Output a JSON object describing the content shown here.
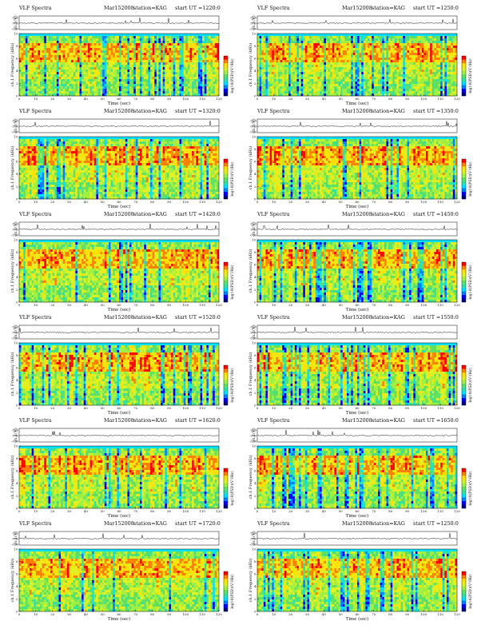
{
  "figure": {
    "type": "VLF Spectra grid",
    "columns": 2,
    "rows": 6
  },
  "colors": {
    "spectrogram_scale": [
      "#000080",
      "#0000ff",
      "#0080ff",
      "#00e0ff",
      "#30e0a0",
      "#60e060",
      "#a0f040",
      "#e0f020",
      "#ffe000",
      "#ff8000",
      "#ff0000"
    ]
  },
  "chart_data": [
    {
      "type": "heatmap",
      "title": "VLF Spectra",
      "date": "Mar152008",
      "station": "station=KAG",
      "start": "start UT =1220:0",
      "xlabel": "Time (sec)",
      "ylabel": "ch.1 Frequency (kHz)",
      "toplabel": "ch.1(V)",
      "colorbar_label": "log10(PSD)(V²/Hz)",
      "xlim": [
        0,
        120
      ],
      "ylim": [
        0,
        10
      ],
      "xticks": [
        "0",
        "10",
        "20",
        "30",
        "40",
        "50",
        "60",
        "70",
        "80",
        "90",
        "100",
        "110",
        "120"
      ],
      "yticks": [
        "0",
        "2",
        "4",
        "6",
        "8",
        "10"
      ],
      "top_ticks": [
        "0.20",
        "0.00",
        "-0.50"
      ],
      "seed": 11
    },
    {
      "type": "heatmap",
      "title": "VLF Spectra",
      "date": "Mar152008",
      "station": "station=KAG",
      "start": "start UT =1250:0",
      "xlabel": "Time (sec)",
      "ylabel": "ch.1 Frequency (kHz)",
      "toplabel": "ch.1(V)",
      "colorbar_label": "log10(PSD)(V²/Hz)",
      "xlim": [
        0,
        120
      ],
      "ylim": [
        0,
        10
      ],
      "xticks": [
        "0",
        "10",
        "20",
        "30",
        "40",
        "50",
        "60",
        "70",
        "80",
        "90",
        "100",
        "110",
        "120"
      ],
      "yticks": [
        "0",
        "2",
        "4",
        "6",
        "8",
        "10"
      ],
      "top_ticks": [
        "0.20",
        "0.00",
        "-0.50"
      ],
      "seed": 23
    },
    {
      "type": "heatmap",
      "title": "VLF Spectra",
      "date": "Mar152008",
      "station": "station=KAG",
      "start": "start UT =1320:0",
      "xlabel": "Time (sec)",
      "ylabel": "ch.1 Frequency (kHz)",
      "toplabel": "ch.1(V)",
      "colorbar_label": "log10(PSD)(V²/Hz)",
      "xlim": [
        0,
        120
      ],
      "ylim": [
        0,
        10
      ],
      "xticks": [
        "0",
        "10",
        "20",
        "30",
        "40",
        "50",
        "60",
        "70",
        "80",
        "90",
        "100",
        "110",
        "120"
      ],
      "yticks": [
        "0",
        "2",
        "4",
        "6",
        "8",
        "10"
      ],
      "top_ticks": [
        "0.20",
        "0.00",
        "-0.50"
      ],
      "seed": 37
    },
    {
      "type": "heatmap",
      "title": "VLF Spectra",
      "date": "Mar152008",
      "station": "station=KAG",
      "start": "start UT =1350:0",
      "xlabel": "Time (sec)",
      "ylabel": "ch.1 Frequency (kHz)",
      "toplabel": "ch.1(V)",
      "colorbar_label": "log10(PSD)(V²/Hz)",
      "xlim": [
        0,
        120
      ],
      "ylim": [
        0,
        10
      ],
      "xticks": [
        "0",
        "10",
        "20",
        "30",
        "40",
        "50",
        "60",
        "70",
        "80",
        "90",
        "100",
        "110",
        "120"
      ],
      "yticks": [
        "0",
        "2",
        "4",
        "6",
        "8",
        "10"
      ],
      "top_ticks": [
        "0.20",
        "0.00",
        "-0.50"
      ],
      "seed": 41
    },
    {
      "type": "heatmap",
      "title": "VLF Spectra",
      "date": "Mar152008",
      "station": "station=KAG",
      "start": "start UT =1420:0",
      "xlabel": "Time (sec)",
      "ylabel": "ch.1 Frequency (kHz)",
      "toplabel": "ch.1(V)",
      "colorbar_label": "log10(PSD)(V²/Hz)",
      "xlim": [
        0,
        120
      ],
      "ylim": [
        0,
        10
      ],
      "xticks": [
        "0",
        "10",
        "20",
        "30",
        "40",
        "50",
        "60",
        "70",
        "80",
        "90",
        "100",
        "110",
        "120"
      ],
      "yticks": [
        "0",
        "2",
        "4",
        "6",
        "8",
        "10"
      ],
      "top_ticks": [
        "0.20",
        "0.00",
        "-0.50"
      ],
      "seed": 53
    },
    {
      "type": "heatmap",
      "title": "VLF Spectra",
      "date": "Mar152008",
      "station": "station=KAG",
      "start": "start UT =1450:0",
      "xlabel": "Time (sec)",
      "ylabel": "ch.1 Frequency (kHz)",
      "toplabel": "ch.1(V)",
      "colorbar_label": "log10(PSD)(V²/Hz)",
      "xlim": [
        0,
        120
      ],
      "ylim": [
        0,
        10
      ],
      "xticks": [
        "0",
        "10",
        "20",
        "30",
        "40",
        "50",
        "60",
        "70",
        "80",
        "90",
        "100",
        "110",
        "120"
      ],
      "yticks": [
        "0",
        "2",
        "4",
        "6",
        "8",
        "10"
      ],
      "top_ticks": [
        "0.20",
        "0.00",
        "-0.50"
      ],
      "seed": 67
    },
    {
      "type": "heatmap",
      "title": "VLF Spectra",
      "date": "Mar152008",
      "station": "station=KAG",
      "start": "start UT =1520:0",
      "xlabel": "Time (sec)",
      "ylabel": "ch.1 Frequency (kHz)",
      "toplabel": "ch.1(V)",
      "colorbar_label": "log10(PSD)(V²/Hz)",
      "xlim": [
        0,
        120
      ],
      "ylim": [
        0,
        10
      ],
      "xticks": [
        "0",
        "10",
        "20",
        "30",
        "40",
        "50",
        "60",
        "70",
        "80",
        "90",
        "100",
        "110",
        "120"
      ],
      "yticks": [
        "0",
        "2",
        "4",
        "6",
        "8",
        "10"
      ],
      "top_ticks": [
        "0.20",
        "0.00",
        "-0.50"
      ],
      "seed": 71
    },
    {
      "type": "heatmap",
      "title": "VLF Spectra",
      "date": "Mar152008",
      "station": "station=KAG",
      "start": "start UT =1550:0",
      "xlabel": "Time (sec)",
      "ylabel": "ch.1 Frequency (kHz)",
      "toplabel": "ch.1(V)",
      "colorbar_label": "log10(PSD)(V²/Hz)",
      "xlim": [
        0,
        120
      ],
      "ylim": [
        0,
        10
      ],
      "xticks": [
        "0",
        "10",
        "20",
        "30",
        "40",
        "50",
        "60",
        "70",
        "80",
        "90",
        "100",
        "110",
        "120"
      ],
      "yticks": [
        "0",
        "2",
        "4",
        "6",
        "8",
        "10"
      ],
      "top_ticks": [
        "0.20",
        "0.00",
        "-0.50"
      ],
      "seed": 83
    },
    {
      "type": "heatmap",
      "title": "VLF Spectra",
      "date": "Mar152008",
      "station": "station=KAG",
      "start": "start UT =1620:0",
      "xlabel": "Time (sec)",
      "ylabel": "ch.1 Frequency (kHz)",
      "toplabel": "ch.1(V)",
      "colorbar_label": "log10(PSD)(V²/Hz)",
      "xlim": [
        0,
        120
      ],
      "ylim": [
        0,
        10
      ],
      "xticks": [
        "0",
        "10",
        "20",
        "30",
        "40",
        "50",
        "60",
        "70",
        "80",
        "90",
        "100",
        "110",
        "120"
      ],
      "yticks": [
        "0",
        "2",
        "4",
        "6",
        "8",
        "10"
      ],
      "top_ticks": [
        "0.20",
        "0.00",
        "-0.50"
      ],
      "seed": 97
    },
    {
      "type": "heatmap",
      "title": "VLF Spectra",
      "date": "Mar152008",
      "station": "station=KAG",
      "start": "start UT =1650:0",
      "xlabel": "Time (sec)",
      "ylabel": "ch.1 Frequency (kHz)",
      "toplabel": "ch.1(V)",
      "colorbar_label": "log10(PSD)(V²/Hz)",
      "xlim": [
        0,
        120
      ],
      "ylim": [
        0,
        10
      ],
      "xticks": [
        "0",
        "10",
        "20",
        "30",
        "40",
        "50",
        "60",
        "70",
        "80",
        "90",
        "100",
        "110",
        "120"
      ],
      "yticks": [
        "0",
        "2",
        "4",
        "6",
        "8",
        "10"
      ],
      "top_ticks": [
        "0.20",
        "0.00",
        "-0.50"
      ],
      "seed": 101
    },
    {
      "type": "heatmap",
      "title": "VLF Spectra",
      "date": "Mar152008",
      "station": "station=KAG",
      "start": "start UT =1720:0",
      "xlabel": "Time (sec)",
      "ylabel": "ch.1 Frequency (kHz)",
      "toplabel": "ch.1(V)",
      "colorbar_label": "log10(PSD)(V²/Hz)",
      "xlim": [
        0,
        120
      ],
      "ylim": [
        0,
        10
      ],
      "xticks": [
        "0",
        "10",
        "20",
        "30",
        "40",
        "50",
        "60",
        "70",
        "80",
        "90",
        "100",
        "110",
        "120"
      ],
      "yticks": [
        "0",
        "2",
        "4",
        "6",
        "8",
        "10"
      ],
      "top_ticks": [
        "0.20",
        "0.00",
        "-0.50"
      ],
      "seed": 113
    },
    {
      "type": "heatmap",
      "title": "VLF Spectra",
      "date": "Mar152008",
      "station": "station=KAG",
      "start": "start UT =1250:0",
      "xlabel": "Time (sec)",
      "ylabel": "ch.1 Frequency (kHz)",
      "toplabel": "ch.1(V)",
      "colorbar_label": "log10(PSD)(V²/Hz)",
      "xlim": [
        0,
        120
      ],
      "ylim": [
        0,
        10
      ],
      "xticks": [
        "0",
        "10",
        "20",
        "30",
        "40",
        "50",
        "60",
        "70",
        "80",
        "90",
        "100",
        "110",
        "120"
      ],
      "yticks": [
        "0",
        "2",
        "4",
        "6",
        "8",
        "10"
      ],
      "top_ticks": [
        "0.20",
        "0.00",
        "-0.50"
      ],
      "seed": 127
    }
  ]
}
